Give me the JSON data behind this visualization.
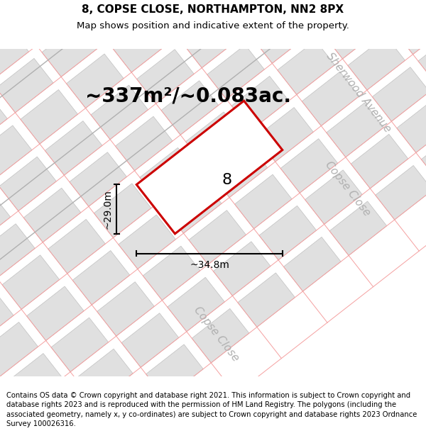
{
  "title_line1": "8, COPSE CLOSE, NORTHAMPTON, NN2 8PX",
  "title_line2": "Map shows position and indicative extent of the property.",
  "area_text": "~337m²/~0.083ac.",
  "property_number": "8",
  "width_label": "~34.8m",
  "height_label": "~29.0m",
  "footer_text": "Contains OS data © Crown copyright and database right 2021. This information is subject to Crown copyright and database rights 2023 and is reproduced with the permission of HM Land Registry. The polygons (including the associated geometry, namely x, y co-ordinates) are subject to Crown copyright and database rights 2023 Ordnance Survey 100026316.",
  "bg_color": "#ffffff",
  "map_bg_color": "#f2f2f2",
  "property_color": "#cc0000",
  "property_fill": "#ffffff",
  "block_color": "#e0e0e0",
  "block_edge_color": "#c0c0c0",
  "pink_line_color": "#f5a0a0",
  "title_fontsize": 11,
  "subtitle_fontsize": 9.5,
  "footer_fontsize": 7.2,
  "area_fontsize": 20,
  "label_fontsize": 10,
  "property_label_fontsize": 16,
  "street_label_color": "#b0b0b0",
  "street_label_fontsize": 11
}
